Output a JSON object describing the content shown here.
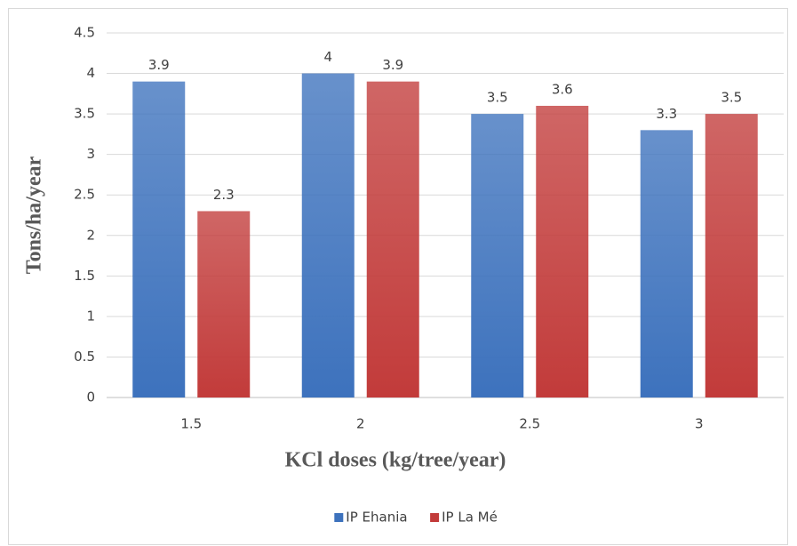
{
  "chart_data": {
    "type": "bar",
    "categories": [
      "1.5",
      "2",
      "2.5",
      "3"
    ],
    "series": [
      {
        "name": "IP Ehania",
        "color": "#3d72bd",
        "values": [
          3.9,
          4,
          3.5,
          3.3
        ]
      },
      {
        "name": "IP La Mé",
        "color": "#c23b3a",
        "values": [
          2.3,
          3.9,
          3.6,
          3.5
        ]
      }
    ],
    "xlabel": "KCl doses (kg/tree/year)",
    "ylabel": "Tons/ha/year",
    "ylim": [
      0,
      4.5
    ],
    "yticks": [
      0,
      0.5,
      1,
      1.5,
      2,
      2.5,
      3,
      3.5,
      4,
      4.5
    ],
    "grid": true,
    "legend": "bottom",
    "data_labels": true
  }
}
